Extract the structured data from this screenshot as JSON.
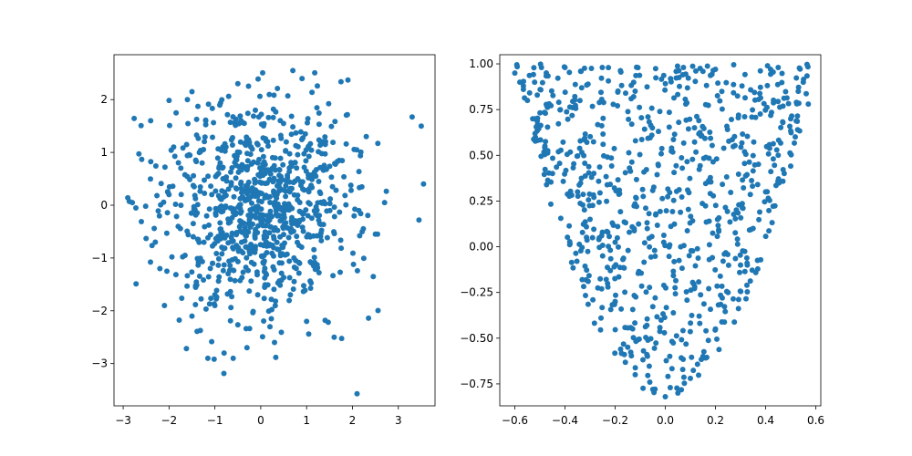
{
  "chart_data": [
    {
      "type": "scatter",
      "color": "#1f77b4",
      "marker": "filled-circle",
      "grid": false,
      "xlim": [
        -3.2,
        3.8
      ],
      "ylim": [
        -3.8,
        2.85
      ],
      "xticks": [
        {
          "value": -3,
          "label": "−3"
        },
        {
          "value": -2,
          "label": "−2"
        },
        {
          "value": -1,
          "label": "−1"
        },
        {
          "value": 0,
          "label": "0"
        },
        {
          "value": 1,
          "label": "1"
        },
        {
          "value": 2,
          "label": "2"
        },
        {
          "value": 3,
          "label": "3"
        }
      ],
      "yticks": [
        {
          "value": -3,
          "label": "−3"
        },
        {
          "value": -2,
          "label": "−2"
        },
        {
          "value": -1,
          "label": "−1"
        },
        {
          "value": 0,
          "label": "0"
        },
        {
          "value": 1,
          "label": "1"
        },
        {
          "value": 2,
          "label": "2"
        }
      ],
      "distribution": "standard normal 2D, approx. 1000 points (individual values not readable)",
      "points": [
        [
          -2.9,
          0.14
        ],
        [
          -2.8,
          0.05
        ],
        [
          -2.5,
          -0.63
        ],
        [
          -2.4,
          1.6
        ],
        [
          -2.3,
          -0.7
        ],
        [
          -2.2,
          -1.2
        ],
        [
          -2.1,
          -1.9
        ],
        [
          -2.0,
          0.2
        ],
        [
          -1.9,
          1.1
        ],
        [
          -1.8,
          -0.4
        ],
        [
          -1.6,
          2.0
        ],
        [
          -1.5,
          2.15
        ],
        [
          -1.5,
          -2.1
        ],
        [
          -1.2,
          1.6
        ],
        [
          -1.0,
          -1.9
        ],
        [
          -0.8,
          -2.8
        ],
        [
          -0.6,
          -2.9
        ],
        [
          -0.5,
          2.3
        ],
        [
          -0.3,
          -2.7
        ],
        [
          0.2,
          -2.3
        ],
        [
          0.3,
          -2.6
        ],
        [
          0.7,
          2.55
        ],
        [
          0.9,
          2.4
        ],
        [
          1.0,
          -2.2
        ],
        [
          1.6,
          -2.5
        ],
        [
          1.9,
          2.37
        ],
        [
          2.1,
          -3.57
        ],
        [
          2.3,
          1.3
        ],
        [
          2.5,
          -0.55
        ],
        [
          2.7,
          0.05
        ],
        [
          3.3,
          1.67
        ],
        [
          3.5,
          1.5
        ],
        [
          3.55,
          0.4
        ],
        [
          3.45,
          -0.28
        ]
      ]
    },
    {
      "type": "scatter",
      "color": "#1f77b4",
      "marker": "filled-circle",
      "grid": false,
      "xlim": [
        -0.66,
        0.62
      ],
      "ylim": [
        -0.87,
        1.05
      ],
      "xticks": [
        {
          "value": -0.6,
          "label": "−0.6"
        },
        {
          "value": -0.4,
          "label": "−0.4"
        },
        {
          "value": -0.2,
          "label": "−0.2"
        },
        {
          "value": 0.0,
          "label": "0.0"
        },
        {
          "value": 0.2,
          "label": "0.2"
        },
        {
          "value": 0.4,
          "label": "0.4"
        },
        {
          "value": 0.6,
          "label": "0.6"
        }
      ],
      "yticks": [
        {
          "value": -0.75,
          "label": "−0.75"
        },
        {
          "value": -0.5,
          "label": "−0.50"
        },
        {
          "value": -0.25,
          "label": "−0.25"
        },
        {
          "value": 0.0,
          "label": "0.00"
        },
        {
          "value": 0.25,
          "label": "0.25"
        },
        {
          "value": 0.5,
          "label": "0.50"
        },
        {
          "value": 0.75,
          "label": "0.75"
        },
        {
          "value": 1.0,
          "label": "1.00"
        }
      ],
      "distribution": "approx. 800 points filling a parabolic band between y = 5*x^2 - 0.8 and y = 1.0 for x in [-0.6, 0.57] (individual values not readable)",
      "points": [
        [
          -0.6,
          0.95
        ],
        [
          -0.58,
          0.9
        ],
        [
          -0.55,
          0.8
        ],
        [
          -0.52,
          0.7
        ],
        [
          -0.48,
          0.55
        ],
        [
          -0.45,
          0.4
        ],
        [
          -0.4,
          0.98
        ],
        [
          -0.35,
          0.3
        ],
        [
          -0.3,
          0.15
        ],
        [
          -0.25,
          -0.05
        ],
        [
          -0.2,
          -0.3
        ],
        [
          -0.15,
          -0.55
        ],
        [
          -0.12,
          -0.7
        ],
        [
          -0.05,
          -0.78
        ],
        [
          0.0,
          -0.82
        ],
        [
          0.05,
          -0.8
        ],
        [
          0.1,
          -0.72
        ],
        [
          0.15,
          -0.6
        ],
        [
          0.2,
          -0.45
        ],
        [
          0.25,
          -0.25
        ],
        [
          0.3,
          -0.1
        ],
        [
          0.35,
          0.1
        ],
        [
          0.4,
          0.3
        ],
        [
          0.45,
          0.5
        ],
        [
          0.5,
          0.7
        ],
        [
          0.53,
          0.85
        ],
        [
          0.55,
          0.9
        ],
        [
          0.57,
          0.78
        ],
        [
          0.45,
          0.98
        ],
        [
          0.2,
          0.97
        ]
      ]
    }
  ]
}
